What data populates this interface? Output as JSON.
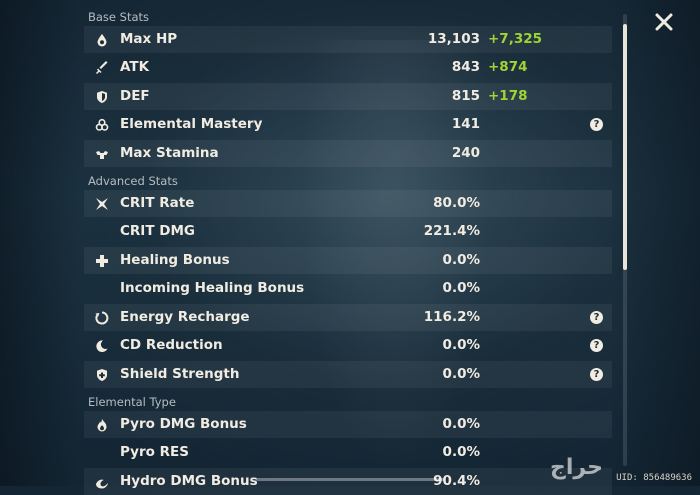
{
  "sections": {
    "base": "Base Stats",
    "advanced": "Advanced Stats",
    "elemental": "Elemental Type"
  },
  "stats": [
    {
      "label": "Max HP",
      "value": "13,103",
      "bonus": "+7,325",
      "help": false,
      "icon": "droplet-icon"
    },
    {
      "label": "ATK",
      "value": "843",
      "bonus": "+874",
      "help": false,
      "icon": "sword-icon"
    },
    {
      "label": "DEF",
      "value": "815",
      "bonus": "+178",
      "help": false,
      "icon": "shield-icon"
    },
    {
      "label": "Elemental Mastery",
      "value": "141",
      "bonus": "",
      "help": true,
      "icon": "triple-circle-icon"
    },
    {
      "label": "Max Stamina",
      "value": "240",
      "bonus": "",
      "help": false,
      "icon": "stamina-icon"
    },
    {
      "label": "CRIT Rate",
      "value": "80.0%",
      "bonus": "",
      "help": false,
      "icon": "crit-star-icon"
    },
    {
      "label": "CRIT DMG",
      "value": "221.4%",
      "bonus": "",
      "help": false,
      "icon": ""
    },
    {
      "label": "Healing Bonus",
      "value": "0.0%",
      "bonus": "",
      "help": false,
      "icon": "plus-cross-icon"
    },
    {
      "label": "Incoming Healing Bonus",
      "value": "0.0%",
      "bonus": "",
      "help": false,
      "icon": ""
    },
    {
      "label": "Energy Recharge",
      "value": "116.2%",
      "bonus": "",
      "help": true,
      "icon": "recharge-ring-icon"
    },
    {
      "label": "CD Reduction",
      "value": "0.0%",
      "bonus": "",
      "help": true,
      "icon": "moon-icon"
    },
    {
      "label": "Shield Strength",
      "value": "0.0%",
      "bonus": "",
      "help": true,
      "icon": "shield-plus-icon"
    },
    {
      "label": "Pyro DMG Bonus",
      "value": "0.0%",
      "bonus": "",
      "help": false,
      "icon": "pyro-flame-icon"
    },
    {
      "label": "Pyro RES",
      "value": "0.0%",
      "bonus": "",
      "help": false,
      "icon": ""
    },
    {
      "label": "Hydro DMG Bonus",
      "value": "90.4%",
      "bonus": "",
      "help": false,
      "icon": "hydro-wave-icon"
    }
  ],
  "help_glyph": "?",
  "close_icon": "close-icon",
  "uid": "UID: 856489636",
  "watermark": "حراج",
  "colors": {
    "bonus": "#9ed434",
    "text": "#f1ece2",
    "section": "#b7bcc0"
  }
}
